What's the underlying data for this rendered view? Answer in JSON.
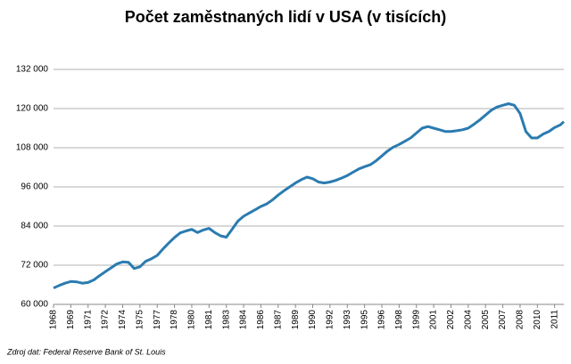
{
  "chart_data": {
    "type": "line",
    "title": "Počet zaměstnaných lidí v USA (v tisících)",
    "source": "Zdroj dat: Federal Reserve Bank of St. Louis",
    "color": "#2b7bb0",
    "grid": true,
    "x": [
      1968,
      1968.5,
      1969,
      1969.5,
      1970,
      1970.5,
      1971,
      1971.5,
      1972,
      1972.5,
      1973,
      1973.5,
      1974,
      1974.5,
      1975,
      1975.5,
      1976,
      1976.5,
      1977,
      1977.5,
      1978,
      1978.5,
      1979,
      1979.5,
      1980,
      1980.5,
      1981,
      1981.5,
      1982,
      1982.5,
      1983,
      1983.5,
      1984,
      1984.5,
      1985,
      1985.5,
      1986,
      1986.5,
      1987,
      1987.5,
      1988,
      1988.5,
      1989,
      1989.5,
      1990,
      1990.5,
      1991,
      1991.5,
      1992,
      1992.5,
      1993,
      1993.5,
      1994,
      1994.5,
      1995,
      1995.5,
      1996,
      1996.5,
      1997,
      1997.5,
      1998,
      1998.5,
      1999,
      1999.5,
      2000,
      2000.5,
      2001,
      2001.5,
      2002,
      2002.5,
      2003,
      2003.5,
      2004,
      2004.5,
      2005,
      2005.5,
      2006,
      2006.5,
      2007,
      2007.5,
      2008,
      2008.5,
      2009,
      2009.5,
      2010,
      2010.5,
      2011,
      2011.5,
      2012,
      2012.3
    ],
    "values": [
      65000,
      65800,
      66500,
      67000,
      66900,
      66500,
      66700,
      67500,
      68800,
      70000,
      71200,
      72400,
      73000,
      72900,
      71000,
      71500,
      73200,
      74000,
      75000,
      77000,
      78800,
      80500,
      81900,
      82500,
      83000,
      82000,
      82800,
      83300,
      82000,
      81000,
      80600,
      83000,
      85500,
      87000,
      88000,
      89000,
      90000,
      90800,
      92000,
      93500,
      94800,
      96000,
      97200,
      98200,
      99000,
      98500,
      97500,
      97200,
      97500,
      98000,
      98700,
      99500,
      100500,
      101500,
      102200,
      102800,
      104000,
      105500,
      107000,
      108200,
      109000,
      110000,
      111000,
      112500,
      114000,
      114500,
      114000,
      113500,
      113000,
      113000,
      113200,
      113500,
      114000,
      115200,
      116500,
      118000,
      119500,
      120500,
      121000,
      121500,
      121000,
      118500,
      113000,
      111000,
      111000,
      112200,
      113000,
      114200,
      115000,
      116000
    ],
    "xlim": [
      1968,
      2012.3
    ],
    "xticks": [
      1968,
      {
        "value": 1969.5,
        "label": "1969"
      },
      1971,
      {
        "value": 1972.5,
        "label": "1972"
      },
      1974,
      {
        "value": 1975.5,
        "label": "1975"
      },
      1977,
      {
        "value": 1978.5,
        "label": "1978"
      },
      1980,
      {
        "value": 1981.5,
        "label": "1981"
      },
      1983,
      {
        "value": 1984.5,
        "label": "1984"
      },
      1986,
      {
        "value": 1987.5,
        "label": "1987"
      },
      1989,
      {
        "value": 1990.5,
        "label": "1990"
      },
      1992,
      {
        "value": 1993.5,
        "label": "1993"
      },
      1995,
      {
        "value": 1996.5,
        "label": "1996"
      },
      1998,
      {
        "value": 1999.5,
        "label": "1999"
      },
      2001,
      {
        "value": 2002.5,
        "label": "2002"
      },
      2004,
      {
        "value": 2005.5,
        "label": "2005"
      },
      2007,
      {
        "value": 2008.5,
        "label": "2008"
      },
      2010,
      {
        "value": 2011.5,
        "label": "2011"
      }
    ],
    "ylim": [
      60000,
      132000
    ],
    "yticks": [
      {
        "value": 60000,
        "label": "60 000"
      },
      {
        "value": 72000,
        "label": "72 000"
      },
      {
        "value": 84000,
        "label": "84 000"
      },
      {
        "value": 96000,
        "label": "96 000"
      },
      {
        "value": 108000,
        "label": "108 000"
      },
      {
        "value": 120000,
        "label": "120 000"
      },
      {
        "value": 132000,
        "label": "132 000"
      }
    ]
  }
}
